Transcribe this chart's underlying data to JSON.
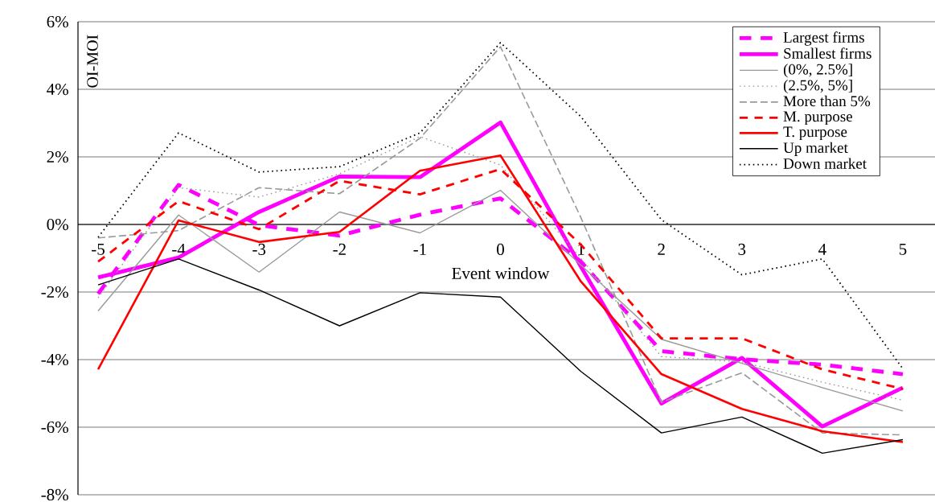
{
  "chart_data": {
    "type": "line",
    "xlabel": "Event window",
    "ylabel": "OI-MOI",
    "x": [
      -5,
      -4,
      -3,
      -2,
      -1,
      0,
      1,
      2,
      3,
      4,
      5
    ],
    "xlim": [
      -5.25,
      5.4
    ],
    "xticks": [
      -5,
      -4,
      -3,
      -2,
      -1,
      0,
      1,
      2,
      3,
      4,
      5
    ],
    "ylim": [
      -8,
      6
    ],
    "yticks": [
      {
        "value": -8,
        "label": "-8%"
      },
      {
        "value": -6,
        "label": "-6%"
      },
      {
        "value": -4,
        "label": "-4%"
      },
      {
        "value": -2,
        "label": "-2%"
      },
      {
        "value": 0,
        "label": "0%"
      },
      {
        "value": 2,
        "label": "2%"
      },
      {
        "value": 4,
        "label": "4%"
      },
      {
        "value": 6,
        "label": "6%"
      }
    ],
    "grid": "y",
    "legend": "top right",
    "marker": "none",
    "series": [
      {
        "name": "Largest firms",
        "color": "#ff00ff",
        "line_style": "dashed",
        "values": [
          -2.05,
          1.17,
          -0.02,
          -0.33,
          0.29,
          0.77,
          -1.1,
          -3.75,
          -3.99,
          -4.15,
          -4.43
        ]
      },
      {
        "name": "Smallest firms",
        "color": "#ff00ff",
        "line_style": "solid",
        "values": [
          -1.57,
          -0.98,
          0.37,
          1.42,
          1.4,
          3.02,
          -1.25,
          -5.3,
          -3.95,
          -5.98,
          -4.83
        ]
      },
      {
        "name": "(0%, 2.5%]",
        "color": "#999999",
        "line_style": "solid",
        "values": [
          -2.56,
          0.28,
          -1.41,
          0.37,
          -0.25,
          1.01,
          -1.2,
          -3.4,
          -4.11,
          -4.83,
          -5.52
        ]
      },
      {
        "name": "(2.5%, 5%]",
        "color": "#999999",
        "line_style": "dotted",
        "values": [
          -2.17,
          1.09,
          0.81,
          1.5,
          2.6,
          1.76,
          -1.0,
          -3.91,
          -4.07,
          -4.67,
          -5.2
        ]
      },
      {
        "name": "More than 5%",
        "color": "#999999",
        "line_style": "dashed",
        "values": [
          -0.4,
          -0.18,
          1.09,
          0.91,
          2.55,
          5.26,
          0.2,
          -5.26,
          -4.39,
          -6.17,
          -6.23
        ]
      },
      {
        "name": "M. purpose",
        "color": "#ff0000",
        "line_style": "dashed",
        "values": [
          -1.1,
          0.69,
          -0.14,
          1.29,
          0.89,
          1.64,
          -0.6,
          -3.37,
          -3.37,
          -4.29,
          -4.87
        ]
      },
      {
        "name": "T. purpose",
        "color": "#ff0000",
        "line_style": "solid",
        "values": [
          -4.29,
          0.12,
          -0.52,
          -0.22,
          1.59,
          2.04,
          -1.69,
          -4.43,
          -5.46,
          -6.12,
          -6.44
        ]
      },
      {
        "name": "Up market",
        "color": "#000000",
        "line_style": "solid",
        "values": [
          -1.79,
          -1.02,
          -1.94,
          -3.0,
          -2.02,
          -2.15,
          -4.35,
          -6.17,
          -5.7,
          -6.77,
          -6.37
        ]
      },
      {
        "name": "Down market",
        "color": "#000000",
        "line_style": "dotted",
        "values": [
          -0.38,
          2.71,
          1.55,
          1.71,
          2.71,
          5.38,
          3.19,
          0.14,
          -1.49,
          -1.02,
          -4.27
        ]
      }
    ]
  }
}
